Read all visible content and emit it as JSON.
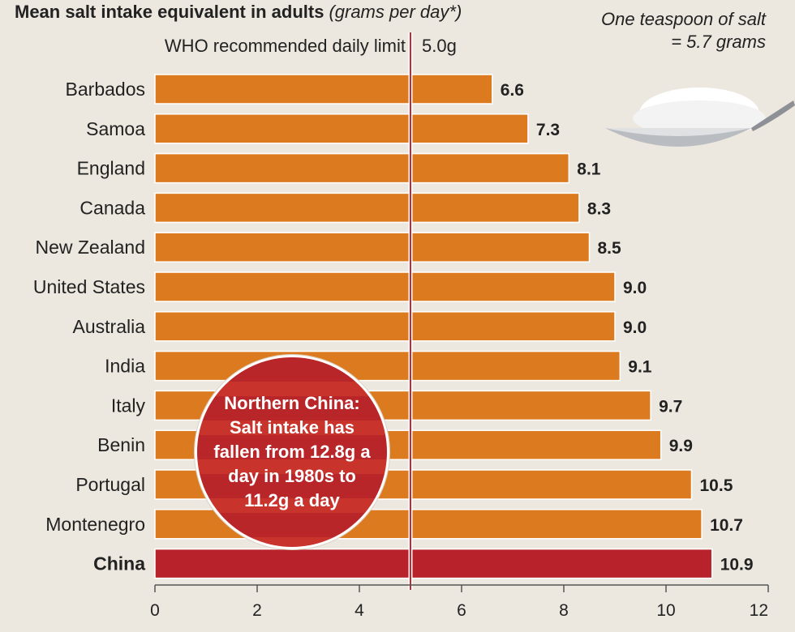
{
  "header": {
    "title": "Mean salt intake equivalent in adults",
    "subtitle": "(grams per day*)"
  },
  "teaspoon_note": "One teaspoon of salt = 5.7 grams",
  "who_limit": {
    "label": "WHO recommended daily limit",
    "value_label": "5.0g"
  },
  "callout_text": "Northern China: Salt intake has fallen from 12.8g a day in 1980s to 11.2g a day",
  "colors": {
    "bar": "#dc7a1f",
    "highlight_bar": "#b8222a",
    "limit_line": "#c42a35"
  },
  "chart_data": {
    "type": "bar",
    "orientation": "horizontal",
    "categories": [
      "Barbados",
      "Samoa",
      "England",
      "Canada",
      "New Zealand",
      "United States",
      "Australia",
      "India",
      "Italy",
      "Benin",
      "Portugal",
      "Montenegro",
      "China"
    ],
    "values": [
      6.6,
      7.3,
      8.1,
      8.3,
      8.5,
      9.0,
      9.0,
      9.1,
      9.7,
      9.9,
      10.5,
      10.7,
      10.9
    ],
    "value_labels": [
      "6.6",
      "7.3",
      "8.1",
      "8.3",
      "8.5",
      "9.0",
      "9.0",
      "9.1",
      "9.7",
      "9.9",
      "10.5",
      "10.7",
      "10.9"
    ],
    "highlight": "China",
    "reference_line": 5.0,
    "xlim": [
      0,
      12
    ],
    "xticks": [
      0,
      2,
      4,
      6,
      8,
      10,
      12
    ],
    "grid": false
  }
}
